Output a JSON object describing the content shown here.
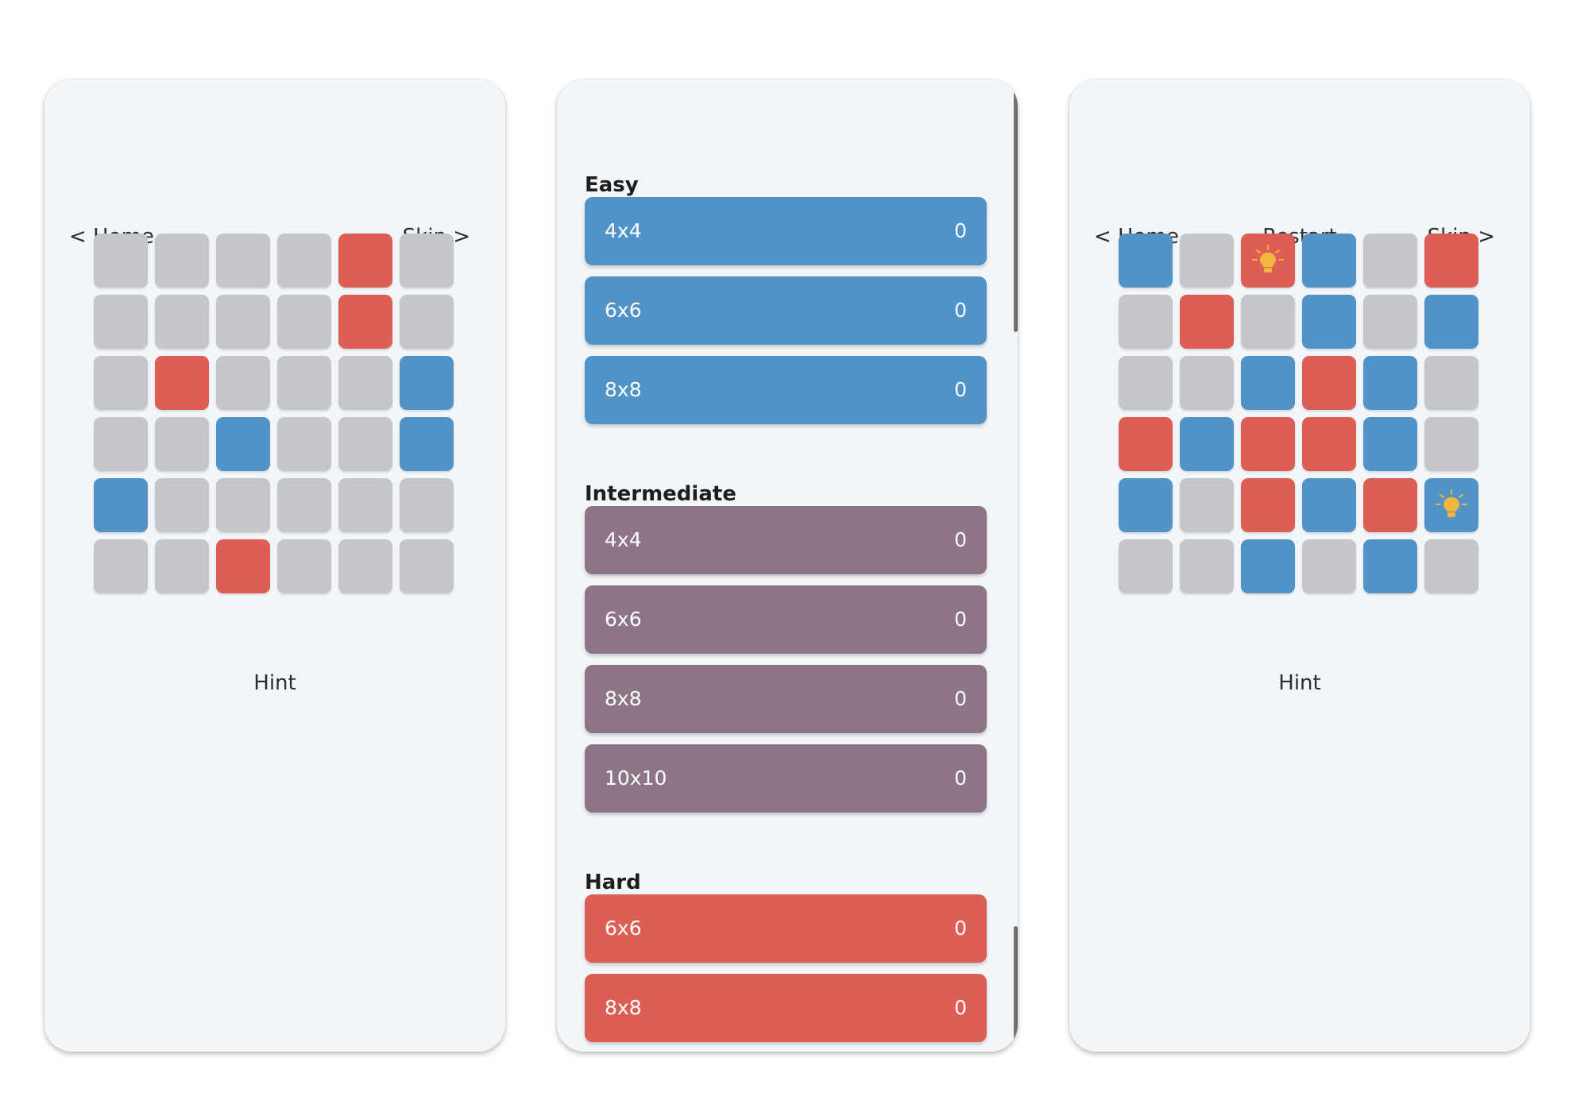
{
  "colors": {
    "gray": "#c4c6ca",
    "red": "#dd5e55",
    "blue": "#5193c6",
    "easy": "#5193c6",
    "intermediate": "#8d7487",
    "hard": "#dd5e55",
    "bulb": "#f2b63d"
  },
  "screen_left": {
    "home_label": "< Home",
    "skip_label": "Skip >",
    "hint_label": "Hint",
    "grid": [
      [
        "gray",
        "gray",
        "gray",
        "gray",
        "red",
        "gray"
      ],
      [
        "gray",
        "gray",
        "gray",
        "gray",
        "red",
        "gray"
      ],
      [
        "gray",
        "red",
        "gray",
        "gray",
        "gray",
        "blue"
      ],
      [
        "gray",
        "gray",
        "blue",
        "gray",
        "gray",
        "blue"
      ],
      [
        "blue",
        "gray",
        "gray",
        "gray",
        "gray",
        "gray"
      ],
      [
        "gray",
        "gray",
        "red",
        "gray",
        "gray",
        "gray"
      ]
    ]
  },
  "screen_middle": {
    "sections": [
      {
        "title": "Easy",
        "color": "easy",
        "levels": [
          {
            "size": "4x4",
            "score": "0"
          },
          {
            "size": "6x6",
            "score": "0"
          },
          {
            "size": "8x8",
            "score": "0"
          }
        ]
      },
      {
        "title": "Intermediate",
        "color": "intermediate",
        "levels": [
          {
            "size": "4x4",
            "score": "0"
          },
          {
            "size": "6x6",
            "score": "0"
          },
          {
            "size": "8x8",
            "score": "0"
          },
          {
            "size": "10x10",
            "score": "0"
          }
        ]
      },
      {
        "title": "Hard",
        "color": "hard",
        "levels": [
          {
            "size": "6x6",
            "score": "0"
          },
          {
            "size": "8x8",
            "score": "0"
          }
        ]
      }
    ]
  },
  "screen_right": {
    "home_label": "< Home",
    "restart_label": "Restart",
    "skip_label": "Skip >",
    "hint_label": "Hint",
    "grid": [
      [
        "blue",
        "gray",
        "red",
        "blue",
        "gray",
        "red"
      ],
      [
        "gray",
        "red",
        "gray",
        "blue",
        "gray",
        "blue"
      ],
      [
        "gray",
        "gray",
        "blue",
        "red",
        "blue",
        "gray"
      ],
      [
        "red",
        "blue",
        "red",
        "red",
        "blue",
        "gray"
      ],
      [
        "blue",
        "gray",
        "red",
        "blue",
        "red",
        "blue"
      ],
      [
        "gray",
        "gray",
        "blue",
        "gray",
        "blue",
        "gray"
      ]
    ],
    "hint_cells": [
      {
        "row": 0,
        "col": 2,
        "icon": "lightbulb-icon"
      },
      {
        "row": 4,
        "col": 5,
        "icon": "lightbulb-icon"
      }
    ]
  }
}
